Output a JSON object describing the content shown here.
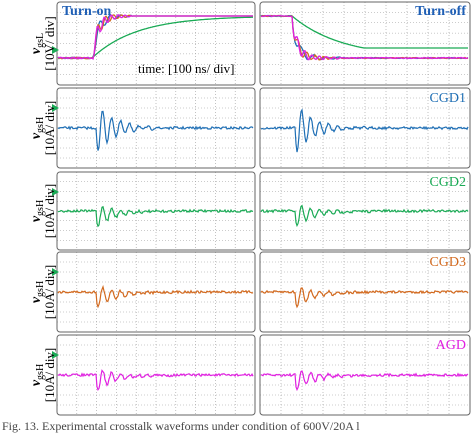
{
  "panels_top": {
    "turn_on": "Turn-on",
    "turn_off": "Turn-off",
    "time_scale": "time: [100 ns/ div]"
  },
  "rows": [
    {
      "y_label": {
        "symbol": "v",
        "sub": "gsL",
        "unit": "[10V/ div]"
      }
    },
    {
      "y_label": {
        "symbol": "v",
        "sub": "gsH",
        "unit": "[10A/ div]"
      },
      "name": "CGD1"
    },
    {
      "y_label": {
        "symbol": "v",
        "sub": "gsH",
        "unit": "[10A/ div]"
      },
      "name": "CGD2"
    },
    {
      "y_label": {
        "symbol": "v",
        "sub": "gsH",
        "unit": "[10A/ div]"
      },
      "name": "CGD3"
    },
    {
      "y_label": {
        "symbol": "v",
        "sub": "gsH",
        "unit": "[10A/ div]"
      },
      "name": "AGD"
    }
  ],
  "caption": "Fig. 13. Experimental crosstalk waveforms under condition of 600V/20A l"
}
